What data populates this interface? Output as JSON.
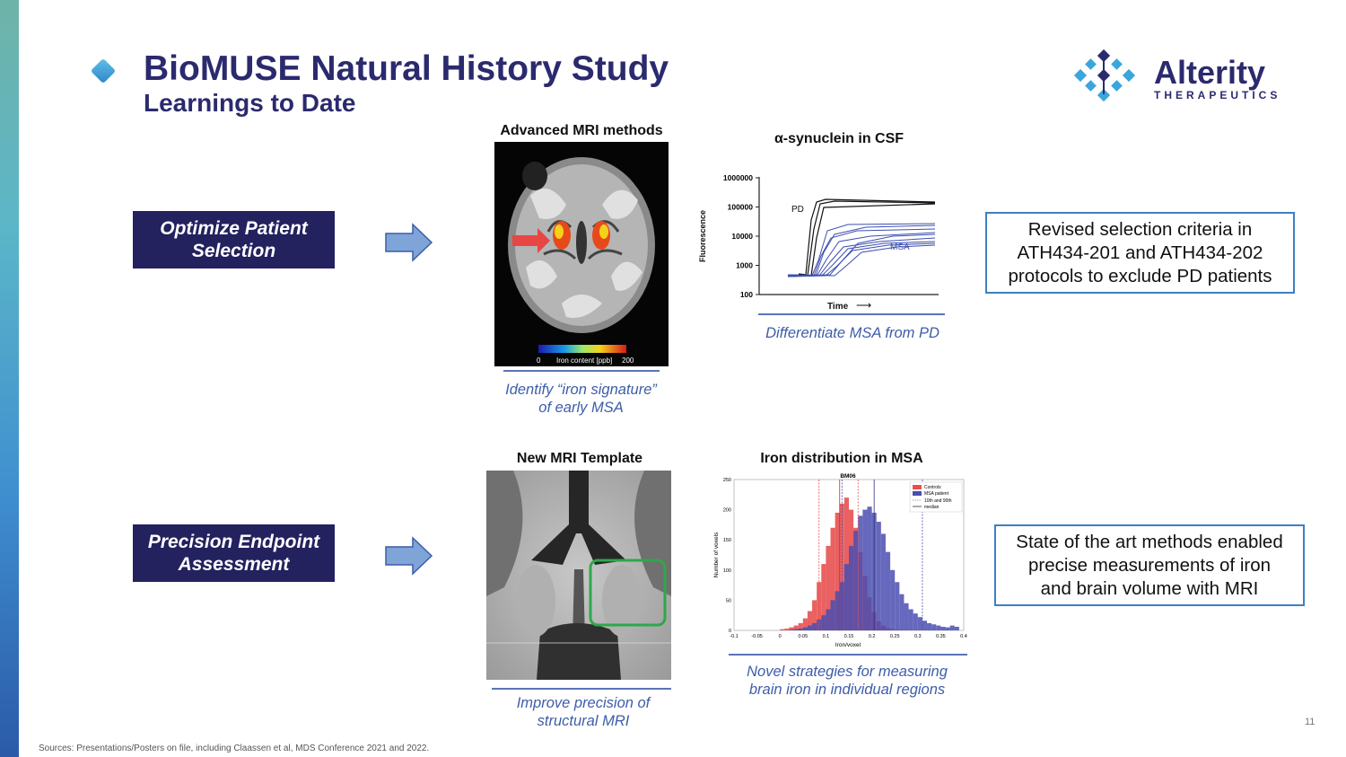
{
  "header": {
    "title": "BioMUSE Natural History Study",
    "subtitle": "Learnings to Date"
  },
  "logo": {
    "name": "Alterity",
    "tagline": "THERAPEUTICS"
  },
  "rows": [
    {
      "label": "Optimize Patient\nSelection",
      "outcome": "Revised selection criteria in\nATH434-201 and ATH434-202\nprotocols to exclude PD patients"
    },
    {
      "label": "Precision Endpoint\nAssessment",
      "outcome": "State of the art methods enabled\nprecise measurements of iron\nand brain volume with MRI"
    }
  ],
  "panels": {
    "mri_methods": {
      "heading": "Advanced MRI methods",
      "caption": "Identify “iron signature”\nof early MSA",
      "colorbar_min": "0",
      "colorbar_label": "Iron content [ppb]",
      "colorbar_max": "200"
    },
    "synuclein": {
      "heading": "α-synuclein in CSF",
      "caption": "Differentiate MSA from PD",
      "ylabel": "Fluorescence",
      "xlabel": "Time",
      "pd_label": "PD",
      "msa_label": "MSA",
      "y_ticks": [
        "1000000",
        "100000",
        "10000",
        "1000",
        "100"
      ]
    },
    "template": {
      "heading": "New MRI Template",
      "caption": "Improve precision of\nstructural MRI"
    },
    "iron_dist": {
      "heading": "Iron distribution in MSA",
      "caption": "Novel strategies for measuring\nbrain iron in individual regions",
      "chart_title": "BM06",
      "ylabel": "Number of voxels",
      "xlabel": "Iron/voxel",
      "legend": [
        "Controls",
        "MSA patient",
        "10th and 90th",
        "median"
      ],
      "x_ticks": [
        "-0.1",
        "-0.05",
        "0",
        "0.05",
        "0.1",
        "0.15",
        "0.2",
        "0.25",
        "0.3",
        "0.35",
        "0.4"
      ],
      "y_ticks": [
        "0",
        "50",
        "100",
        "150",
        "200",
        "250"
      ]
    }
  },
  "chart_data": {
    "type": "bar",
    "title": "BM06",
    "xlabel": "Iron/voxel",
    "ylabel": "Number of voxels",
    "xlim": [
      -0.1,
      0.4
    ],
    "ylim": [
      0,
      250
    ],
    "bin_width": 0.01,
    "bin_starts": [
      0.0,
      0.01,
      0.02,
      0.03,
      0.04,
      0.05,
      0.06,
      0.07,
      0.08,
      0.09,
      0.1,
      0.11,
      0.12,
      0.13,
      0.14,
      0.15,
      0.16,
      0.17,
      0.18,
      0.19,
      0.2,
      0.21,
      0.22,
      0.23,
      0.24,
      0.25,
      0.26,
      0.27,
      0.28,
      0.29,
      0.3,
      0.31,
      0.32,
      0.33,
      0.34,
      0.35,
      0.36,
      0.37,
      0.38
    ],
    "series": [
      {
        "name": "Controls",
        "color": "#e85050",
        "values": [
          2,
          3,
          5,
          8,
          12,
          20,
          32,
          50,
          80,
          110,
          140,
          170,
          195,
          210,
          220,
          200,
          170,
          130,
          90,
          55,
          30,
          15,
          8,
          4,
          2,
          1,
          0,
          0,
          0,
          0,
          0,
          0,
          0,
          0,
          0,
          0,
          0,
          0,
          0
        ]
      },
      {
        "name": "MSA patient",
        "color": "#4a4eb0",
        "values": [
          0,
          0,
          1,
          2,
          3,
          5,
          8,
          12,
          18,
          25,
          35,
          50,
          65,
          80,
          110,
          140,
          165,
          190,
          200,
          205,
          195,
          180,
          160,
          130,
          100,
          80,
          60,
          45,
          35,
          28,
          22,
          16,
          12,
          10,
          8,
          6,
          5,
          8,
          6
        ]
      }
    ],
    "reference_lines": {
      "controls_percentiles": [
        0.085,
        0.17
      ],
      "controls_median": 0.13,
      "msa_percentiles": [
        0.135,
        0.31
      ],
      "msa_median": 0.205
    }
  },
  "footer": {
    "sources": "Sources: Presentations/Posters on file, including Claassen et al, MDS Conference 2021 and 2022.",
    "page": "11"
  }
}
